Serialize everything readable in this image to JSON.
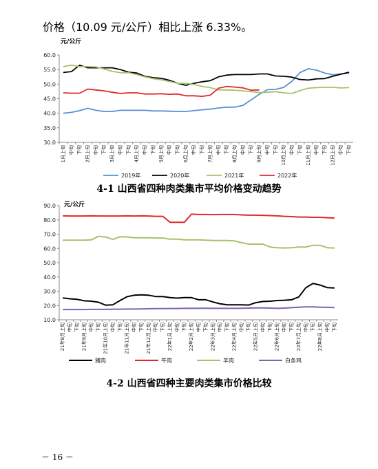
{
  "intro_text": "价格（10.09 元/公斤）相比上涨 6.33%。",
  "page_number": "－ 16 －",
  "colors": {
    "c2019": "#5b8fd1",
    "c2020": "#000000",
    "c2021": "#a5c26a",
    "c2022": "#e0282d",
    "pork": "#000000",
    "beef": "#e0282d",
    "mutton": "#a5c26a",
    "chicken": "#7f62b2"
  },
  "chart_data": [
    {
      "type": "line",
      "caption": "4-1 山西省四种肉类集市平均价格变动趋势",
      "ylabel": "元/公斤",
      "ylim": [
        30,
        60
      ],
      "yticks": [
        "30.0",
        "35.0",
        "40.0",
        "45.0",
        "50.0",
        "55.0",
        "60.0"
      ],
      "grid": false,
      "legend_position": "bottom",
      "categories": [
        "1月上旬",
        "中旬",
        "下旬",
        "2月上旬",
        "中旬",
        "下旬",
        "3月上旬",
        "中旬",
        "下旬",
        "4月上旬",
        "中旬",
        "下旬",
        "5月上旬",
        "中旬",
        "下旬",
        "6月上旬",
        "中旬",
        "下旬",
        "7月上旬",
        "中旬",
        "下旬",
        "8月上旬",
        "中旬",
        "下旬",
        "9月上旬",
        "中旬",
        "下旬",
        "10月上旬",
        "中旬",
        "下旬",
        "11月上旬",
        "中旬",
        "下旬",
        "12月上旬",
        "中旬",
        "下旬"
      ],
      "series": [
        {
          "name": "2019年",
          "color_key": "c2019",
          "values": [
            40.0,
            40.3,
            40.9,
            41.7,
            41.0,
            40.6,
            40.6,
            41.0,
            41.0,
            41.0,
            41.0,
            40.8,
            40.8,
            40.7,
            40.6,
            40.6,
            40.9,
            41.2,
            41.4,
            41.8,
            42.1,
            42.1,
            42.7,
            44.6,
            46.5,
            48.1,
            48.2,
            48.9,
            51.0,
            54.0,
            55.3,
            54.8,
            53.8,
            53.2,
            53.5,
            53.8
          ]
        },
        {
          "name": "2020年",
          "color_key": "c2020",
          "values": [
            54.0,
            54.3,
            56.5,
            55.6,
            55.6,
            55.6,
            55.6,
            55.0,
            54.1,
            53.8,
            52.7,
            52.2,
            52.0,
            51.3,
            50.3,
            49.6,
            50.3,
            50.8,
            51.2,
            52.5,
            53.1,
            53.3,
            53.3,
            53.3,
            53.5,
            53.5,
            52.8,
            52.7,
            52.4,
            51.6,
            51.4,
            51.8,
            51.9,
            52.7,
            53.4,
            54.1
          ]
        },
        {
          "name": "2021年",
          "color_key": "c2021",
          "values": [
            56.0,
            56.5,
            56.0,
            56.0,
            55.9,
            55.2,
            54.4,
            53.9,
            53.9,
            53.3,
            52.5,
            51.9,
            51.5,
            50.9,
            50.3,
            50.3,
            49.9,
            49.2,
            48.8,
            48.0,
            48.0,
            47.9,
            47.7,
            47.4,
            47.1,
            47.2,
            47.4,
            47.0,
            46.8,
            47.8,
            48.6,
            48.8,
            48.9,
            48.9,
            48.7,
            48.8
          ]
        },
        {
          "name": "2022年",
          "color_key": "c2022",
          "values": [
            47.0,
            46.9,
            46.9,
            48.3,
            48.0,
            47.7,
            47.2,
            46.8,
            47.0,
            47.0,
            46.6,
            46.6,
            46.7,
            46.5,
            46.6,
            46.0,
            46.0,
            45.8,
            46.2,
            48.6,
            49.2,
            49.0,
            48.7,
            47.9,
            48.0,
            null,
            null,
            null,
            null,
            null,
            null,
            null,
            null,
            null,
            null,
            null
          ]
        }
      ]
    },
    {
      "type": "line",
      "caption": "4-2 山西省四种主要肉类集市价格比较",
      "ylabel": "元/公斤",
      "ylim": [
        10,
        90
      ],
      "yticks": [
        "10.0",
        "20.0",
        "30.0",
        "40.0",
        "50.0",
        "60.0",
        "70.0",
        "80.0",
        "90.0"
      ],
      "grid": false,
      "legend_position": "bottom",
      "categories": [
        "21年8月上旬",
        "中旬",
        "下旬",
        "21年9月上旬",
        "中旬",
        "下旬",
        "21年10月上旬",
        "中旬",
        "下旬",
        "21年11月上旬",
        "中旬",
        "下旬",
        "21年12月上旬",
        "中旬",
        "下旬",
        "22年1月上旬",
        "中旬",
        "下旬",
        "22年2月上旬",
        "中旬",
        "下旬",
        "22年3月上旬",
        "中旬",
        "下旬",
        "22年4月上旬",
        "中旬",
        "下旬",
        "22年5月上旬",
        "中旬",
        "下旬",
        "22年6月上旬",
        "中旬",
        "下旬",
        "22年7月上旬",
        "中旬",
        "下旬",
        "22年8月上旬",
        "中旬",
        "下旬"
      ],
      "series": [
        {
          "name": "猪肉",
          "color_key": "pork",
          "values": [
            25.3,
            24.7,
            24.3,
            23.3,
            23.0,
            22.3,
            20.2,
            20.5,
            23.5,
            26.2,
            27.2,
            27.5,
            27.2,
            26.3,
            26.3,
            25.5,
            25.2,
            25.5,
            25.5,
            24.0,
            24.0,
            22.5,
            21.2,
            20.5,
            20.5,
            20.5,
            20.3,
            22.0,
            22.8,
            23.0,
            23.5,
            23.7,
            24.0,
            26.0,
            32.5,
            35.5,
            34.3,
            32.5,
            32.3
          ]
        },
        {
          "name": "牛肉",
          "color_key": "beef",
          "values": [
            82.8,
            82.7,
            82.7,
            82.7,
            82.8,
            82.7,
            82.7,
            82.7,
            82.7,
            82.8,
            82.7,
            82.8,
            82.7,
            82.5,
            82.5,
            78.3,
            78.3,
            78.3,
            84.0,
            83.8,
            83.8,
            83.7,
            83.8,
            83.8,
            83.8,
            83.5,
            83.3,
            83.3,
            83.2,
            83.0,
            82.8,
            82.5,
            82.3,
            82.0,
            82.0,
            81.8,
            81.8,
            81.5,
            81.3
          ]
        },
        {
          "name": "羊肉",
          "color_key": "mutton",
          "values": [
            65.8,
            65.8,
            65.8,
            65.8,
            66.0,
            68.5,
            68.0,
            66.3,
            68.2,
            68.0,
            67.5,
            67.5,
            67.5,
            67.3,
            67.3,
            66.5,
            66.5,
            66.0,
            66.0,
            66.0,
            65.8,
            65.5,
            65.5,
            65.5,
            65.3,
            64.0,
            63.0,
            63.0,
            63.0,
            61.0,
            60.5,
            60.3,
            60.5,
            61.0,
            61.0,
            62.2,
            62.2,
            60.5,
            60.3
          ]
        },
        {
          "name": "白条鸡",
          "color_key": "chicken",
          "values": [
            17.2,
            17.2,
            17.2,
            17.2,
            17.3,
            17.3,
            17.3,
            17.4,
            17.4,
            17.5,
            17.5,
            17.6,
            17.7,
            17.8,
            17.8,
            17.9,
            17.9,
            18.0,
            18.0,
            18.1,
            18.1,
            18.0,
            18.0,
            18.0,
            18.0,
            18.1,
            18.2,
            18.3,
            18.3,
            18.2,
            18.0,
            18.2,
            18.5,
            18.8,
            19.0,
            19.0,
            18.8,
            18.7,
            18.6
          ]
        }
      ]
    }
  ]
}
